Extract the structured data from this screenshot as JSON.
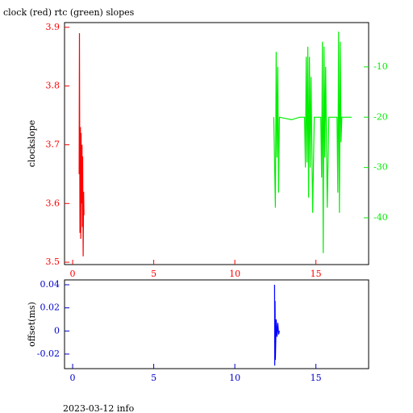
{
  "chart_data": [
    {
      "type": "line",
      "title": "clock (red) rtc (green) slopes",
      "ylabel": "clockslope",
      "xlim": [
        -0.5,
        18.25
      ],
      "xticks": [
        0,
        5,
        10,
        15
      ],
      "ylim": [
        3.496,
        3.908
      ],
      "yticks": [
        3.5,
        3.6,
        3.7,
        3.8,
        3.9
      ],
      "y2lim": [
        -49.3,
        -1.2
      ],
      "y2ticks": [
        -10,
        -20,
        -30,
        -40
      ],
      "xaxis_color": "#ff0000",
      "yaxis_color": "#ff0000",
      "y2axis_color": "#00ee00",
      "series": [
        {
          "name": "clock",
          "color": "#ff0000",
          "x": [
            0.4,
            0.42,
            0.45,
            0.48,
            0.5,
            0.52,
            0.55,
            0.58,
            0.6,
            0.62,
            0.65,
            0.68,
            0.7
          ],
          "values": [
            3.65,
            3.89,
            3.55,
            3.73,
            3.54,
            3.72,
            3.6,
            3.7,
            3.56,
            3.68,
            3.51,
            3.62,
            3.58
          ]
        },
        {
          "name": "rtc",
          "color": "#00ee00",
          "axis": "y2",
          "x": [
            12.4,
            12.5,
            12.55,
            12.6,
            12.65,
            12.7,
            12.75,
            13.5,
            14.0,
            14.3,
            14.35,
            14.4,
            14.45,
            14.5,
            14.55,
            14.6,
            14.65,
            14.7,
            14.8,
            14.9,
            15.3,
            15.35,
            15.4,
            15.45,
            15.5,
            15.55,
            15.6,
            15.7,
            15.8,
            16.3,
            16.35,
            16.4,
            16.45,
            16.5,
            16.55,
            16.6,
            17.2
          ],
          "values": [
            -20,
            -38,
            -7,
            -28,
            -10,
            -35,
            -20,
            -20.5,
            -20,
            -20,
            -30,
            -8,
            -29,
            -6,
            -36,
            -8,
            -30,
            -12,
            -39,
            -20,
            -20,
            -32,
            -5,
            -47,
            -6,
            -28,
            -10,
            -38,
            -20,
            -20,
            -35,
            -3,
            -39,
            -5,
            -25,
            -20,
            -20
          ]
        }
      ]
    },
    {
      "type": "line",
      "ylabel": "offset(ms)",
      "xlim": [
        -0.5,
        18.25
      ],
      "xticks": [
        0,
        5,
        10,
        15
      ],
      "ylim": [
        -0.0326,
        0.0442
      ],
      "yticks": [
        0.04,
        0.02,
        0,
        -0.02
      ],
      "xaxis_color": "#0000cc",
      "yaxis_color": "#0000cc",
      "series": [
        {
          "name": "offset",
          "color": "#0000ff",
          "x": [
            12.45,
            12.46,
            12.48,
            12.5,
            12.55,
            12.6,
            12.65,
            12.7,
            12.75
          ],
          "values": [
            0.04,
            -0.03,
            0.026,
            -0.025,
            0.01,
            -0.005,
            0.007,
            -0.003,
            0
          ]
        }
      ]
    }
  ],
  "footer": "2023-03-12 info"
}
